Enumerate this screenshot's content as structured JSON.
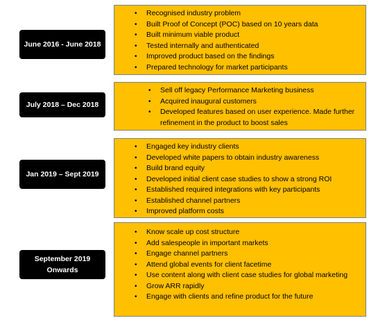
{
  "phases": [
    {
      "label": "June 2016 - June 2018",
      "items": [
        "Recognised industry problem",
        "Built Proof of Concept (POC) based on 10 years data",
        "Built minimum viable product",
        "Tested internally and authenticated",
        "Improved product based on the findings",
        "Prepared technology for market participants"
      ]
    },
    {
      "label": "July 2018 – Dec 2018",
      "items": [
        "Sell off legacy Performance Marketing business",
        "Acquired inaugural customers",
        "Developed features based on user experience. Made further refinement in the product to boost sales"
      ]
    },
    {
      "label": "Jan 2019 – Sept 2019",
      "items": [
        "Engaged key industry clients",
        "Developed white papers to obtain industry awareness",
        "Build brand equity",
        "Developed initial client case studies to show a strong ROI",
        "Established required integrations with key participants",
        "Established channel partners",
        "Improved platform costs"
      ]
    },
    {
      "label": "September 2019 Onwards",
      "items": [
        "Know scale up cost structure",
        "Add salespeople in important markets",
        "Engage channel partners",
        "Attend global events for client facetime",
        "Use content along with client case studies for global marketing",
        "Grow ARR rapidly",
        "Engage with clients and refine product for the future"
      ]
    }
  ],
  "bullet_glyph": "•",
  "colors": {
    "box_fill": "#ffc000",
    "label_fill": "#000000",
    "label_text": "#ffffff"
  }
}
